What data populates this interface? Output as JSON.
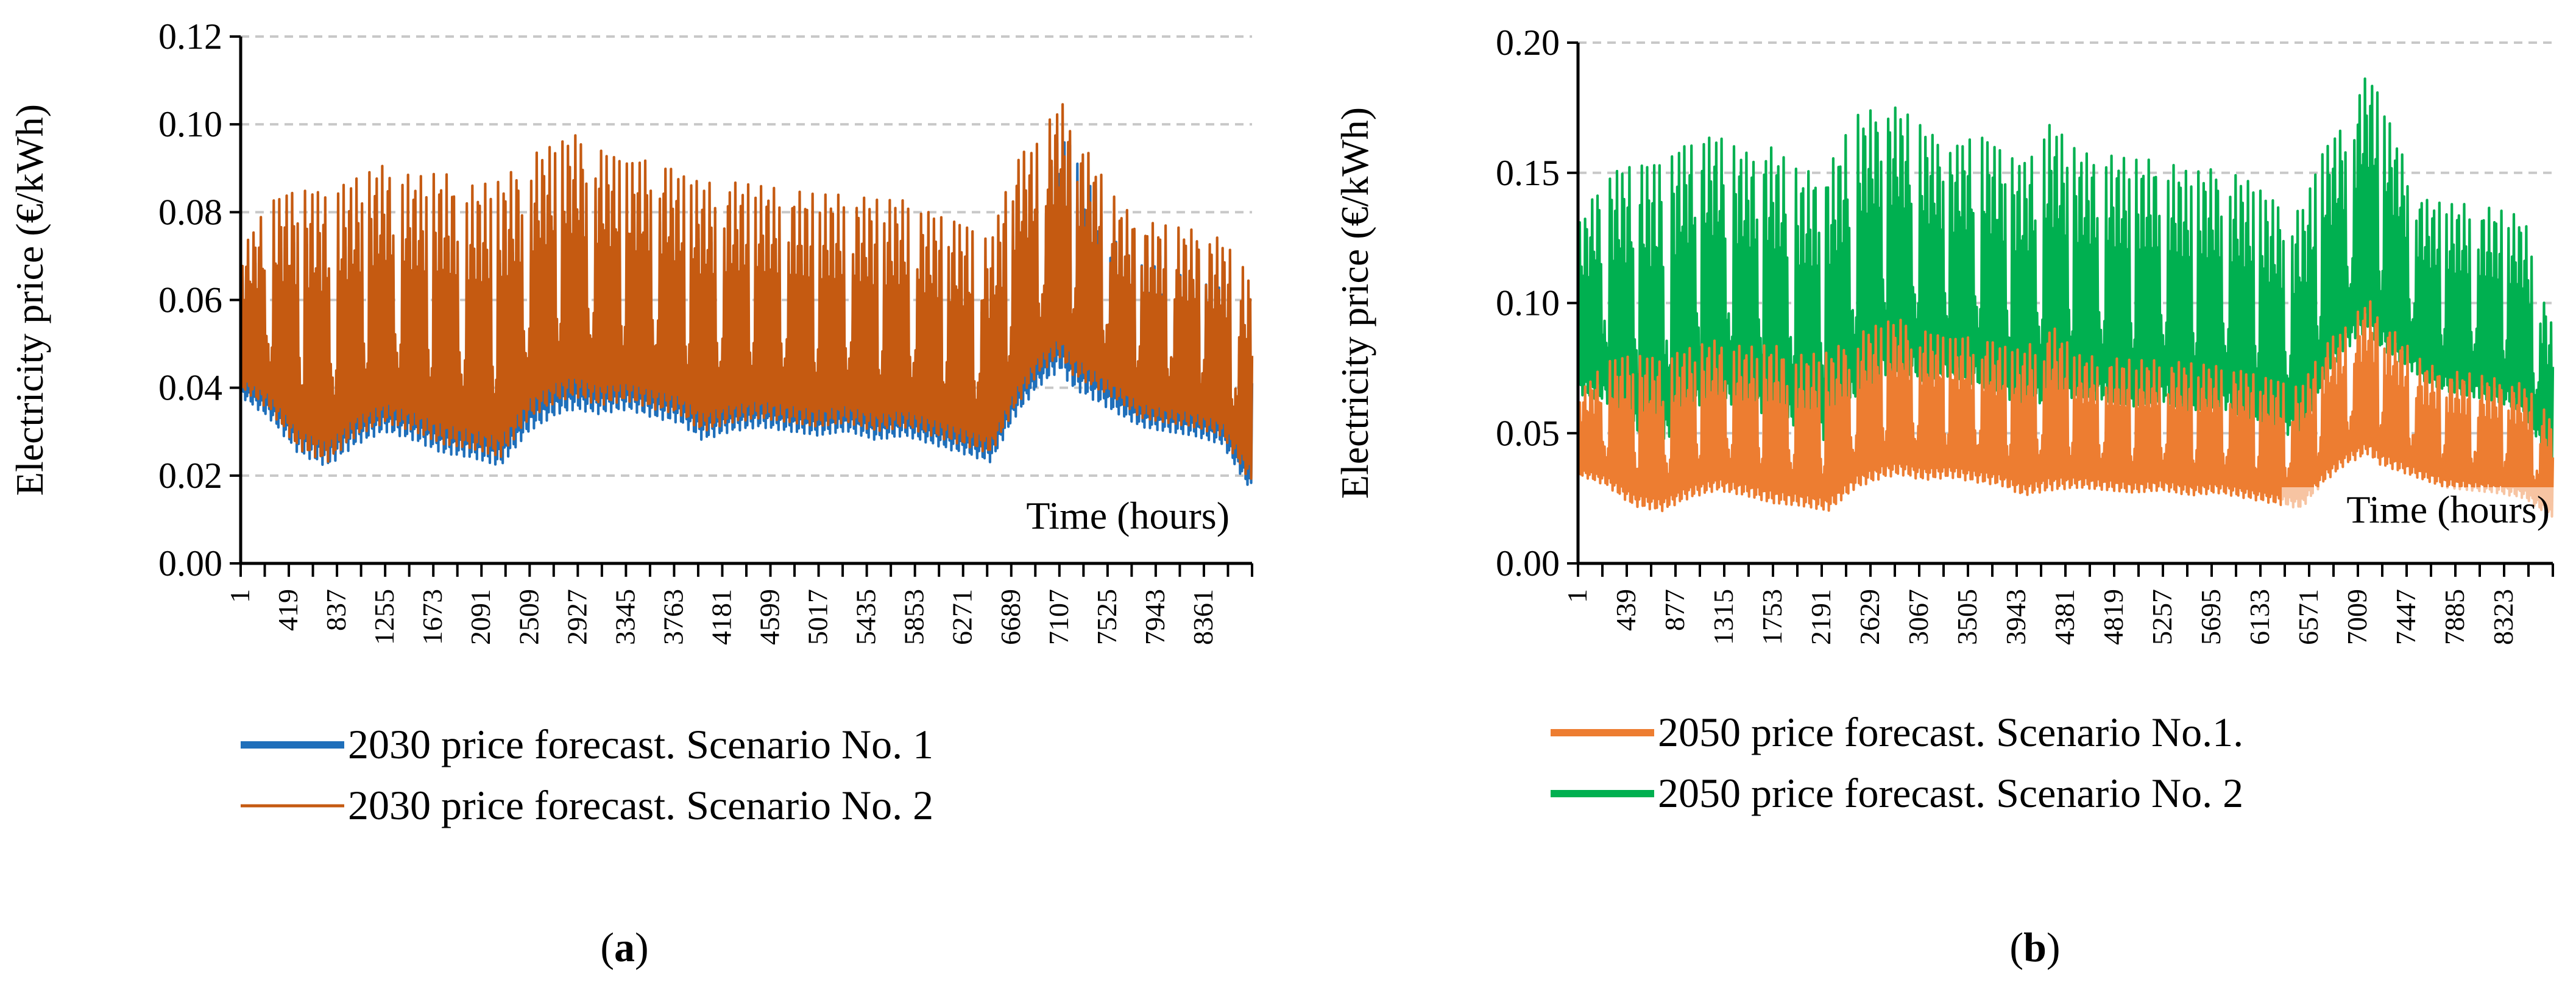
{
  "charts": [
    {
      "id": "a",
      "caption_letter": "a",
      "ylabel": "Electricity price (€/kWh)",
      "xlabel": "Time (hours)",
      "yticks": [
        "0.00",
        "0.02",
        "0.04",
        "0.06",
        "0.08",
        "0.10",
        "0.12"
      ],
      "xticks": [
        "1",
        "419",
        "837",
        "1255",
        "1673",
        "2091",
        "2509",
        "2927",
        "3345",
        "3763",
        "4181",
        "4599",
        "5017",
        "5435",
        "5853",
        "6271",
        "6689",
        "7107",
        "7525",
        "7943",
        "8361"
      ],
      "legend": [
        "2030 price forecast. Scenario No. 1",
        "2030 price forecast. Scenario No. 2"
      ]
    },
    {
      "id": "b",
      "caption_letter": "b",
      "ylabel": "Electricity price (€/kWh)",
      "xlabel": "Time (hours)",
      "yticks": [
        "0.00",
        "0.05",
        "0.10",
        "0.15",
        "0.20"
      ],
      "xticks": [
        "1",
        "439",
        "877",
        "1315",
        "1753",
        "2191",
        "2629",
        "3067",
        "3505",
        "3943",
        "4381",
        "4819",
        "5257",
        "5695",
        "6133",
        "6571",
        "7009",
        "7447",
        "7885",
        "8323"
      ],
      "legend": [
        "2050 price forecast. Scenario No.1.",
        "2050 price forecast. Scenario No. 2"
      ]
    }
  ],
  "chart_data": [
    {
      "type": "line",
      "title": "",
      "xlabel": "Time (hours)",
      "ylabel": "Electricity price (€/kWh)",
      "xlim": [
        1,
        8760
      ],
      "ylim": [
        0,
        0.12
      ],
      "grid": true,
      "series": [
        {
          "name": "2030 price forecast. Scenario No. 1",
          "color": "#1f6fba",
          "summary": {
            "min": 0.016,
            "max": 0.103,
            "typical_low": 0.04,
            "typical_high": 0.075
          },
          "envelope": {
            "x": [
              1,
              250,
              500,
              750,
              1000,
              1250,
              1500,
              1750,
              2000,
              2250,
              2500,
              2750,
              2900,
              3100,
              3350,
              3600,
              3800,
              4000,
              4250,
              4500,
              4750,
              5000,
              5250,
              5500,
              5750,
              6000,
              6250,
              6500,
              6700,
              6900,
              7100,
              7200,
              7400,
              7600,
              7800,
              8000,
              8250,
              8500,
              8760
            ],
            "high": [
              0.065,
              0.072,
              0.074,
              0.072,
              0.074,
              0.076,
              0.075,
              0.074,
              0.071,
              0.072,
              0.078,
              0.082,
              0.083,
              0.08,
              0.079,
              0.079,
              0.076,
              0.075,
              0.073,
              0.072,
              0.071,
              0.07,
              0.07,
              0.069,
              0.068,
              0.066,
              0.063,
              0.062,
              0.076,
              0.08,
              0.099,
              0.095,
              0.086,
              0.074,
              0.07,
              0.07,
              0.067,
              0.066,
              0.05
            ],
            "low": [
              0.038,
              0.033,
              0.025,
              0.022,
              0.027,
              0.03,
              0.028,
              0.025,
              0.024,
              0.022,
              0.03,
              0.034,
              0.035,
              0.034,
              0.035,
              0.033,
              0.032,
              0.028,
              0.03,
              0.031,
              0.03,
              0.029,
              0.03,
              0.028,
              0.029,
              0.027,
              0.025,
              0.023,
              0.033,
              0.04,
              0.044,
              0.04,
              0.037,
              0.034,
              0.031,
              0.03,
              0.029,
              0.027,
              0.016
            ]
          }
        },
        {
          "name": "2030 price forecast. Scenario No. 2",
          "color": "#c55a11",
          "summary": {
            "min": 0.018,
            "max": 0.106,
            "typical_low": 0.04,
            "typical_high": 0.085
          },
          "envelope": {
            "x": [
              1,
              250,
              500,
              750,
              1000,
              1250,
              1500,
              1750,
              2000,
              2250,
              2500,
              2750,
              2900,
              3100,
              3350,
              3600,
              3800,
              4000,
              4250,
              4500,
              4750,
              5000,
              5250,
              5500,
              5750,
              6000,
              6250,
              6500,
              6700,
              6900,
              7100,
              7200,
              7400,
              7600,
              7800,
              8000,
              8250,
              8500,
              8760
            ],
            "high": [
              0.071,
              0.083,
              0.086,
              0.085,
              0.088,
              0.091,
              0.088,
              0.089,
              0.086,
              0.087,
              0.093,
              0.096,
              0.098,
              0.095,
              0.092,
              0.093,
              0.089,
              0.087,
              0.087,
              0.086,
              0.085,
              0.084,
              0.084,
              0.083,
              0.083,
              0.08,
              0.078,
              0.074,
              0.093,
              0.096,
              0.106,
              0.1,
              0.091,
              0.082,
              0.078,
              0.077,
              0.076,
              0.074,
              0.065
            ],
            "low": [
              0.04,
              0.035,
              0.026,
              0.023,
              0.029,
              0.032,
              0.03,
              0.027,
              0.026,
              0.024,
              0.033,
              0.037,
              0.038,
              0.036,
              0.037,
              0.035,
              0.034,
              0.03,
              0.032,
              0.033,
              0.032,
              0.031,
              0.032,
              0.03,
              0.031,
              0.029,
              0.027,
              0.025,
              0.035,
              0.043,
              0.047,
              0.043,
              0.04,
              0.037,
              0.033,
              0.032,
              0.031,
              0.029,
              0.018
            ]
          }
        }
      ]
    },
    {
      "type": "line",
      "title": "",
      "xlabel": "Time (hours)",
      "ylabel": "Electricity price (€/kWh)",
      "xlim": [
        1,
        8760
      ],
      "ylim": [
        0,
        0.2
      ],
      "grid": true,
      "series": [
        {
          "name": "2050 price forecast. Scenario No. 2",
          "color": "#00b050",
          "summary": {
            "min": 0.035,
            "max": 0.19,
            "typical_low": 0.07,
            "typical_high": 0.15
          },
          "envelope": {
            "x": [
              1,
              250,
              500,
              750,
              1000,
              1250,
              1500,
              1750,
              2000,
              2250,
              2500,
              2750,
              2900,
              3100,
              3350,
              3600,
              3800,
              4000,
              4250,
              4500,
              4750,
              5000,
              5250,
              5500,
              5750,
              6000,
              6250,
              6500,
              6700,
              6900,
              7100,
              7200,
              7400,
              7600,
              7800,
              8000,
              8250,
              8500,
              8760
            ],
            "high": [
              0.13,
              0.15,
              0.154,
              0.155,
              0.163,
              0.165,
              0.158,
              0.16,
              0.15,
              0.152,
              0.172,
              0.176,
              0.175,
              0.168,
              0.16,
              0.166,
              0.16,
              0.154,
              0.17,
              0.158,
              0.157,
              0.155,
              0.155,
              0.15,
              0.152,
              0.148,
              0.14,
              0.136,
              0.16,
              0.17,
              0.19,
              0.18,
              0.158,
              0.14,
              0.138,
              0.138,
              0.136,
              0.133,
              0.09
            ],
            "low": [
              0.065,
              0.062,
              0.05,
              0.045,
              0.058,
              0.062,
              0.06,
              0.055,
              0.052,
              0.046,
              0.064,
              0.072,
              0.074,
              0.07,
              0.072,
              0.068,
              0.066,
              0.058,
              0.062,
              0.064,
              0.062,
              0.06,
              0.062,
              0.058,
              0.06,
              0.056,
              0.052,
              0.047,
              0.07,
              0.082,
              0.09,
              0.083,
              0.077,
              0.07,
              0.066,
              0.064,
              0.062,
              0.058,
              0.035
            ]
          }
        },
        {
          "name": "2050 price forecast. Scenario No.1.",
          "color": "#ed7d31",
          "summary": {
            "min": 0.017,
            "max": 0.102,
            "typical_low": 0.035,
            "typical_high": 0.08
          },
          "envelope": {
            "x": [
              1,
              250,
              500,
              750,
              1000,
              1250,
              1500,
              1750,
              2000,
              2250,
              2500,
              2750,
              2900,
              3100,
              3350,
              3600,
              3800,
              4000,
              4250,
              4500,
              4750,
              5000,
              5250,
              5500,
              5750,
              6000,
              6250,
              6500,
              6700,
              6900,
              7100,
              7200,
              7400,
              7600,
              7800,
              8000,
              8250,
              8500,
              8760
            ],
            "high": [
              0.065,
              0.078,
              0.081,
              0.079,
              0.083,
              0.086,
              0.083,
              0.084,
              0.08,
              0.081,
              0.088,
              0.093,
              0.094,
              0.09,
              0.087,
              0.088,
              0.084,
              0.082,
              0.092,
              0.08,
              0.079,
              0.078,
              0.078,
              0.077,
              0.076,
              0.074,
              0.071,
              0.068,
              0.085,
              0.091,
              0.102,
              0.096,
              0.086,
              0.077,
              0.074,
              0.073,
              0.071,
              0.069,
              0.055
            ],
            "low": [
              0.034,
              0.03,
              0.022,
              0.02,
              0.025,
              0.028,
              0.026,
              0.023,
              0.022,
              0.02,
              0.029,
              0.033,
              0.034,
              0.032,
              0.033,
              0.031,
              0.03,
              0.026,
              0.028,
              0.029,
              0.028,
              0.027,
              0.028,
              0.026,
              0.027,
              0.025,
              0.023,
              0.021,
              0.031,
              0.038,
              0.042,
              0.038,
              0.035,
              0.032,
              0.029,
              0.028,
              0.027,
              0.025,
              0.017
            ]
          }
        }
      ]
    }
  ]
}
